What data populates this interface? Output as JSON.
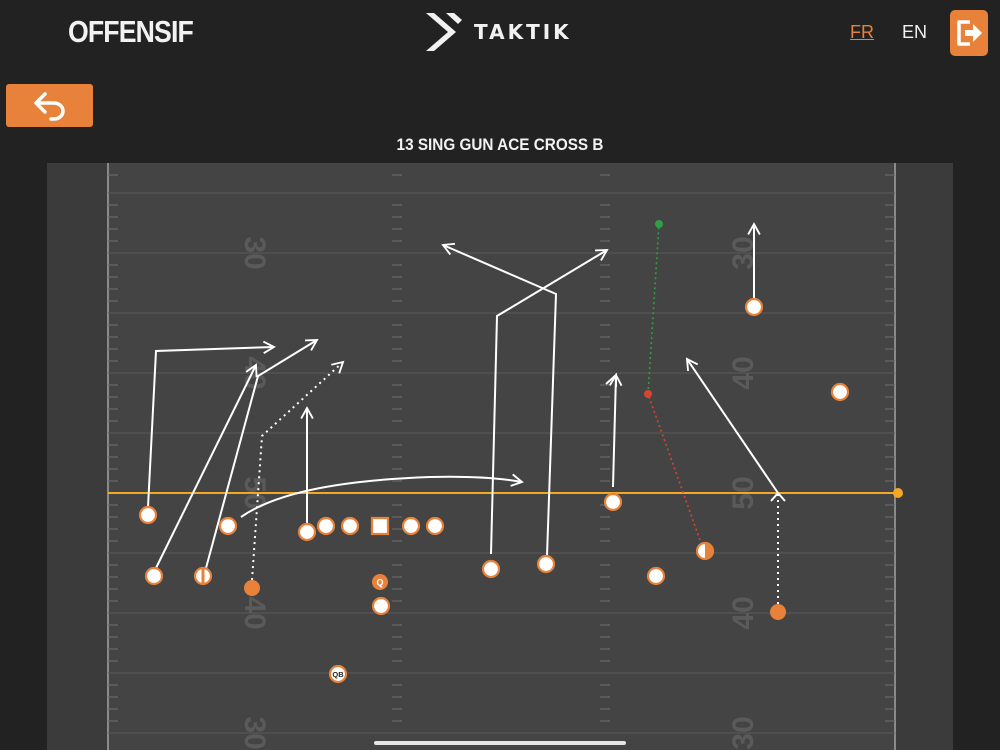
{
  "header": {
    "page_title": "OFFENSIF",
    "brand_name": "TAKTIK",
    "lang_fr": "FR",
    "lang_en": "EN",
    "active_lang": "FR",
    "logout_icon": "logout-icon",
    "back_icon": "undo-arrow-icon"
  },
  "play": {
    "title": "13 SING GUN ACE CROSS  B",
    "yard_numbers": [
      "30",
      "40",
      "50",
      "40",
      "30"
    ],
    "player_labels": {
      "center": "Q",
      "quarterback": "QB"
    }
  },
  "colors": {
    "background": "#222222",
    "field": "#444444",
    "field_border": "#3a3a3a",
    "accent": "#e8823a",
    "line_of_scrimmage": "#f5a623",
    "route": "#ffffff",
    "green_route": "#2f9e44",
    "red_route": "#d64532"
  }
}
